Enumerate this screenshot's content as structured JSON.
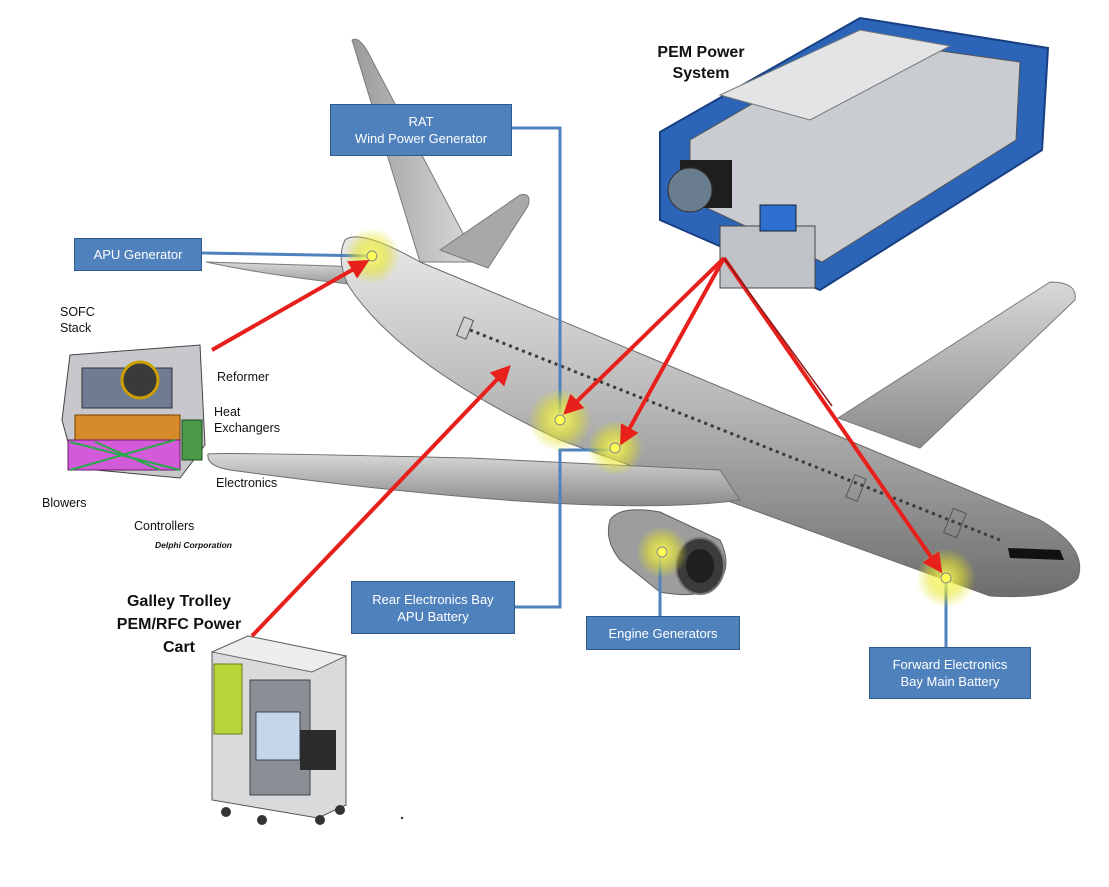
{
  "callouts": {
    "rat_line1": "RAT",
    "rat_line2": "Wind Power Generator",
    "apu_generator": "APU Generator",
    "rear_bay_line1": "Rear Electronics Bay",
    "rear_bay_line2": "APU Battery",
    "engine_generators": "Engine Generators",
    "forward_bay_line1": "Forward Electronics",
    "forward_bay_line2": "Bay Main Battery"
  },
  "pem_system": {
    "line1": "PEM Power",
    "line2": "System"
  },
  "galley": {
    "line1": "Galley Trolley",
    "line2": "PEM/RFC Power",
    "line3": "Cart"
  },
  "sofc": {
    "stack_line1": "SOFC",
    "stack_line2": "Stack",
    "reformer": "Reformer",
    "heat_line1": "Heat",
    "heat_line2": "Exchangers",
    "electronics": "Electronics",
    "blowers": "Blowers",
    "controllers": "Controllers",
    "credit": "Delphi Corporation"
  },
  "colors": {
    "callout_fill": "#4f81bd",
    "arrow": "#e8201c",
    "leader_line": "#4f81bd",
    "hotspot": "#f3f32a"
  },
  "icons": [
    "aircraft-image",
    "pem-power-system-image",
    "sofc-unit-image",
    "galley-trolley-image"
  ]
}
